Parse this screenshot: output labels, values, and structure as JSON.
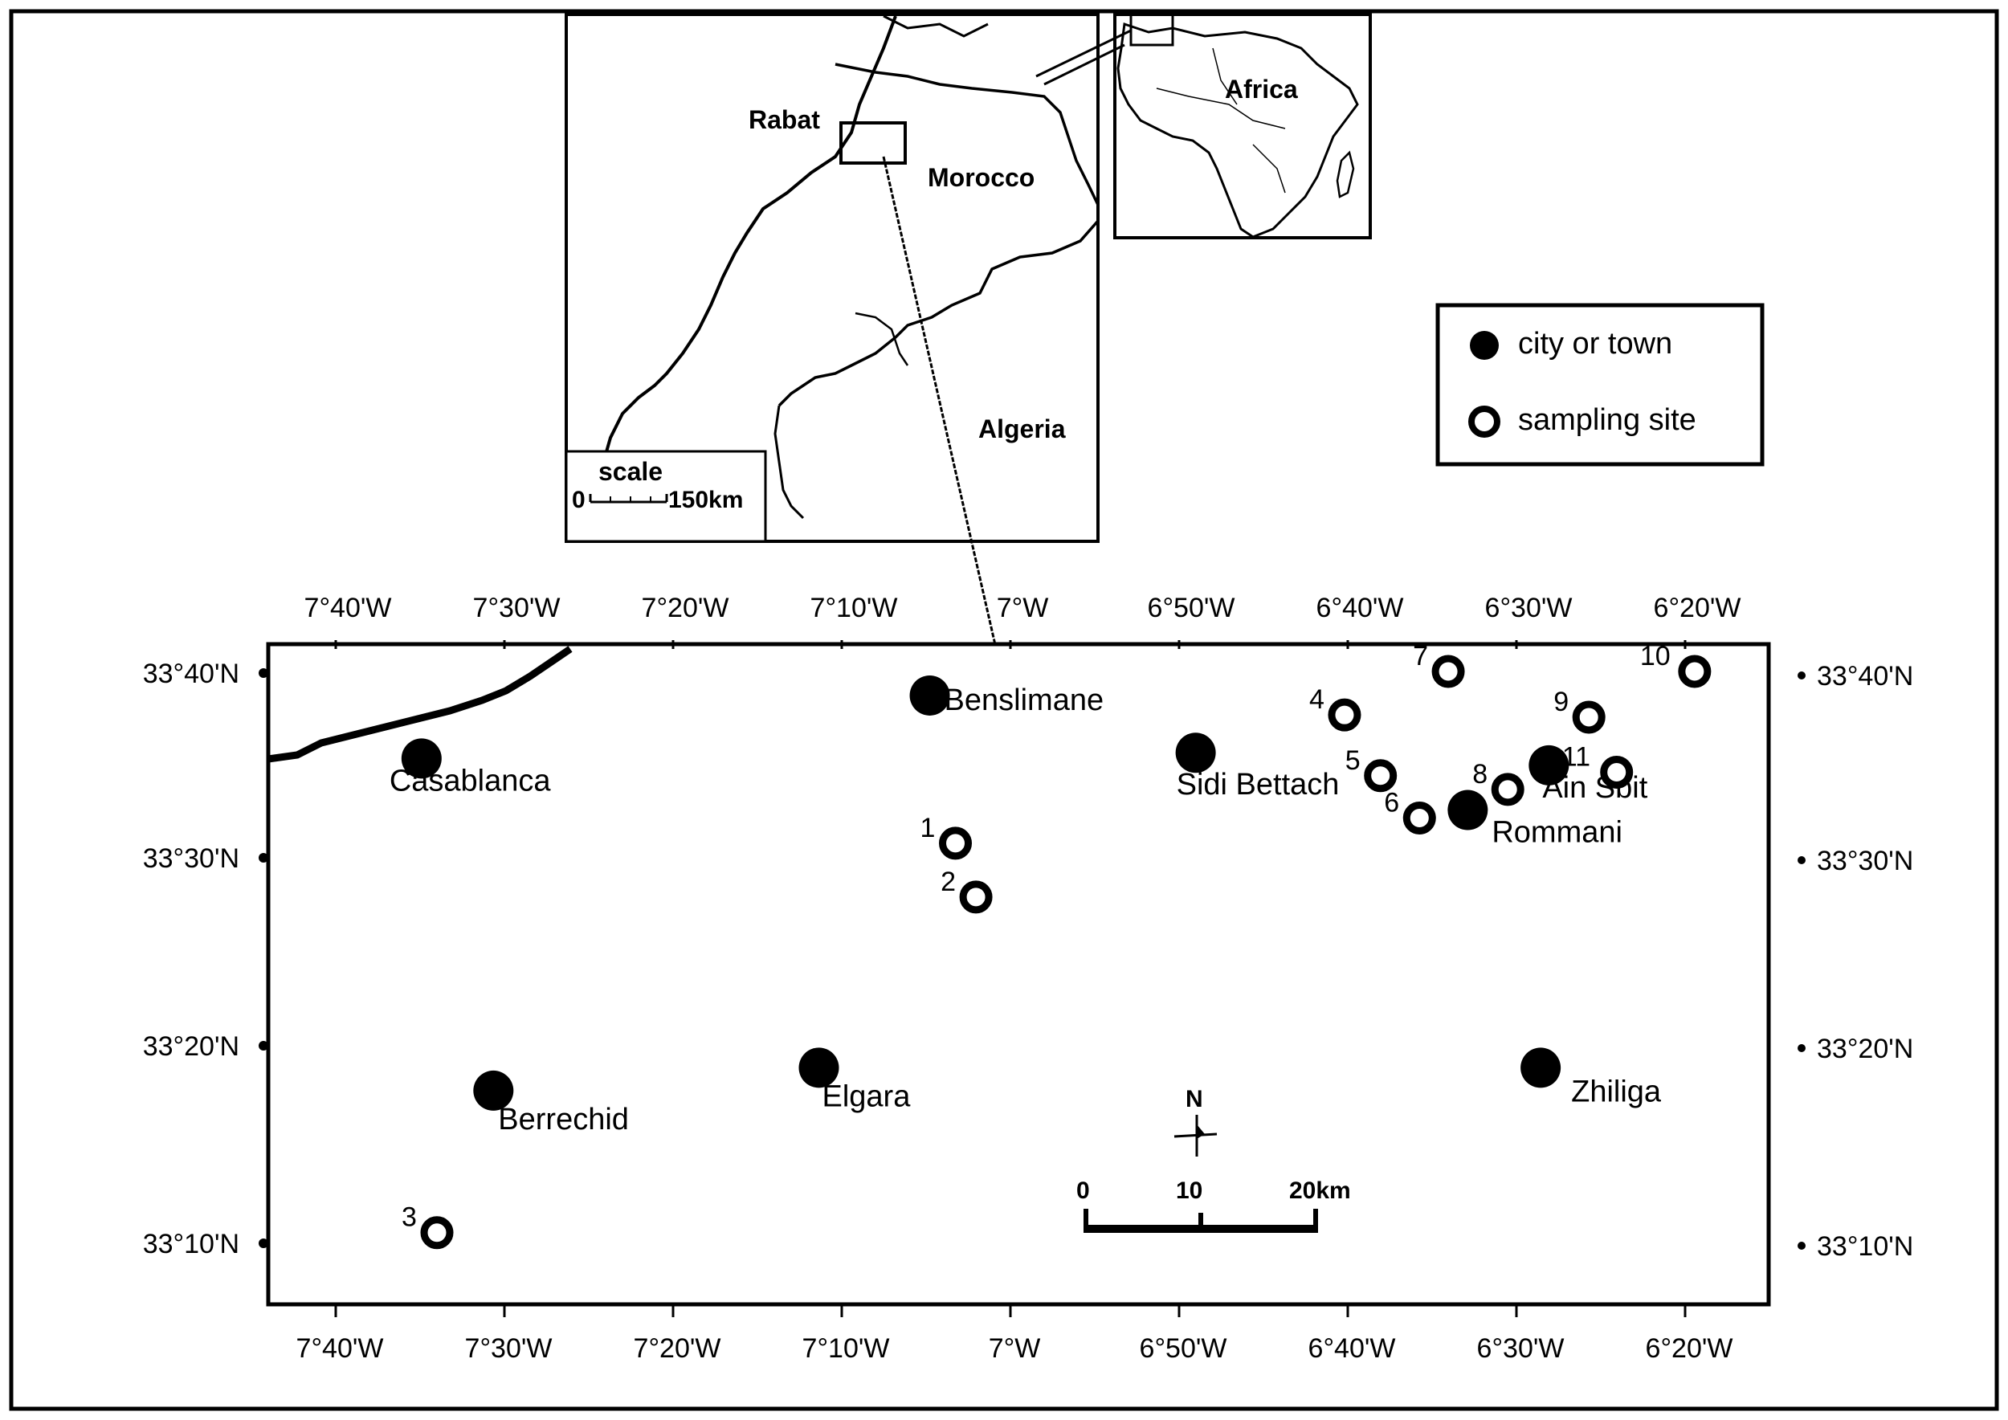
{
  "inset": {
    "country_labels": {
      "rabat": "Rabat",
      "morocco": "Morocco",
      "algeria": "Algeria",
      "africa": "Africa"
    },
    "scale": {
      "title": "scale",
      "zero": "0",
      "end": "150km"
    }
  },
  "legend": {
    "items": [
      {
        "label": "city or town",
        "symbol": "filled-circle"
      },
      {
        "label": "sampling site",
        "symbol": "open-circle"
      }
    ]
  },
  "map": {
    "lon_ticks_top": [
      "7°40'W",
      "7°30'W",
      "7°20'W",
      "7°10'W",
      "7°W",
      "6°50'W",
      "6°40'W",
      "6°30'W",
      "6°20'W"
    ],
    "lon_ticks_bottom": [
      "7°40'W",
      "7°30'W",
      "7°20'W",
      "7°10'W",
      "7°W",
      "6°50'W",
      "6°40'W",
      "6°30'W",
      "6°20'W"
    ],
    "lat_ticks": [
      "33°40'N",
      "33°30'N",
      "33°20'N",
      "33°10'N"
    ],
    "cities": [
      {
        "name": "Casablanca",
        "lon": -7.62,
        "lat": 33.59
      },
      {
        "name": "Benslimane",
        "lon": -7.125,
        "lat": 33.645
      },
      {
        "name": "Sidi Bettach",
        "lon": -6.866,
        "lat": 33.595
      },
      {
        "name": "Ain Sbit",
        "lon": -6.522,
        "lat": 33.584
      },
      {
        "name": "Rommani",
        "lon": -6.601,
        "lat": 33.545
      },
      {
        "name": "Berrechid",
        "lon": -7.55,
        "lat": 33.3
      },
      {
        "name": "Elgara",
        "lon": -7.233,
        "lat": 33.32
      },
      {
        "name": "Zhiliga",
        "lon": -6.53,
        "lat": 33.32
      }
    ],
    "sampling_sites": [
      {
        "id": "1",
        "lon": -7.1,
        "lat": 33.516
      },
      {
        "id": "2",
        "lon": -7.08,
        "lat": 33.469
      },
      {
        "id": "3",
        "lon": -7.605,
        "lat": 33.176
      },
      {
        "id": "4",
        "lon": -6.721,
        "lat": 33.628
      },
      {
        "id": "5",
        "lon": -6.686,
        "lat": 33.575
      },
      {
        "id": "6",
        "lon": -6.648,
        "lat": 33.538
      },
      {
        "id": "7",
        "lon": -6.62,
        "lat": 33.666
      },
      {
        "id": "8",
        "lon": -6.562,
        "lat": 33.563
      },
      {
        "id": "9",
        "lon": -6.483,
        "lat": 33.626
      },
      {
        "id": "10",
        "lon": -6.38,
        "lat": 33.666
      },
      {
        "id": "11",
        "lon": -6.456,
        "lat": 33.578
      }
    ],
    "north_arrow": "N",
    "scale_bar": {
      "zero": "0",
      "mid": "10",
      "end": "20km"
    }
  },
  "colors": {
    "ink": "#000000",
    "paper": "#ffffff"
  }
}
